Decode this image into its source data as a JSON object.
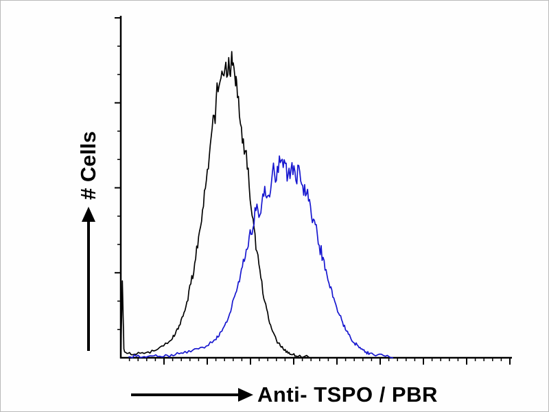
{
  "figure": {
    "background": "#fefefe",
    "border_color": "#b9b9b9"
  },
  "chart_data": {
    "type": "line",
    "subtype": "flow-cytometry-histogram-overlay",
    "title": "",
    "xlabel": "Anti- TSPO / PBR",
    "ylabel": "# Cells",
    "xlim": [
      0,
      100
    ],
    "ylim": [
      0,
      115
    ],
    "grid": false,
    "legend": "none",
    "axis_tick_labels_visible": false,
    "axes": {
      "x_tick_count": 45,
      "y_tick_count": 12,
      "axis_color": "#000000"
    },
    "series": [
      {
        "name": "black histogram",
        "color": "#000000",
        "x": [
          0,
          0.4,
          0.8,
          1.5,
          3,
          5,
          7,
          9,
          11,
          13,
          14,
          15,
          16,
          17,
          18,
          19,
          20,
          21,
          22,
          23,
          24,
          25,
          26,
          27,
          28,
          28.7,
          29.5,
          30,
          31,
          32,
          33,
          34,
          35,
          36,
          37,
          38,
          39,
          40,
          41,
          42,
          43,
          44,
          45,
          47,
          50
        ],
        "y": [
          0,
          26,
          3,
          1.5,
          1,
          1.5,
          2,
          2.5,
          4,
          6,
          8,
          11,
          14,
          19,
          25,
          32,
          41,
          50,
          60,
          72,
          82,
          90,
          97,
          100,
          96,
          99,
          92,
          88,
          78,
          70,
          58,
          47,
          36,
          27,
          19,
          13,
          9,
          6,
          4,
          2.5,
          1.5,
          1,
          0.6,
          0.3,
          0
        ]
      },
      {
        "name": "blue histogram",
        "color": "#1717cf",
        "x": [
          2,
          4,
          6,
          8,
          10,
          12,
          14,
          16,
          18,
          20,
          22,
          24,
          25,
          26,
          27,
          28,
          29,
          30,
          31,
          32,
          33,
          34,
          35,
          36,
          37,
          38,
          39,
          40,
          41,
          42,
          43,
          44,
          45,
          46,
          47,
          48,
          49,
          50,
          51,
          52,
          53,
          54,
          55,
          56,
          57,
          58,
          59,
          60,
          61,
          62,
          63,
          64,
          66,
          68,
          70
        ],
        "y": [
          0.3,
          0.5,
          0.4,
          0.6,
          0.5,
          0.8,
          1,
          1.5,
          2,
          3,
          4,
          6,
          7,
          9,
          12,
          15,
          20,
          24,
          30,
          34,
          41,
          44,
          52,
          49,
          58,
          55,
          63,
          60,
          66,
          67,
          62,
          66,
          60,
          63,
          55,
          57,
          48,
          45,
          38,
          34,
          28,
          24,
          19,
          15,
          12,
          9,
          7,
          5,
          4,
          3,
          2,
          1.5,
          1,
          0.5,
          0
        ]
      }
    ]
  }
}
